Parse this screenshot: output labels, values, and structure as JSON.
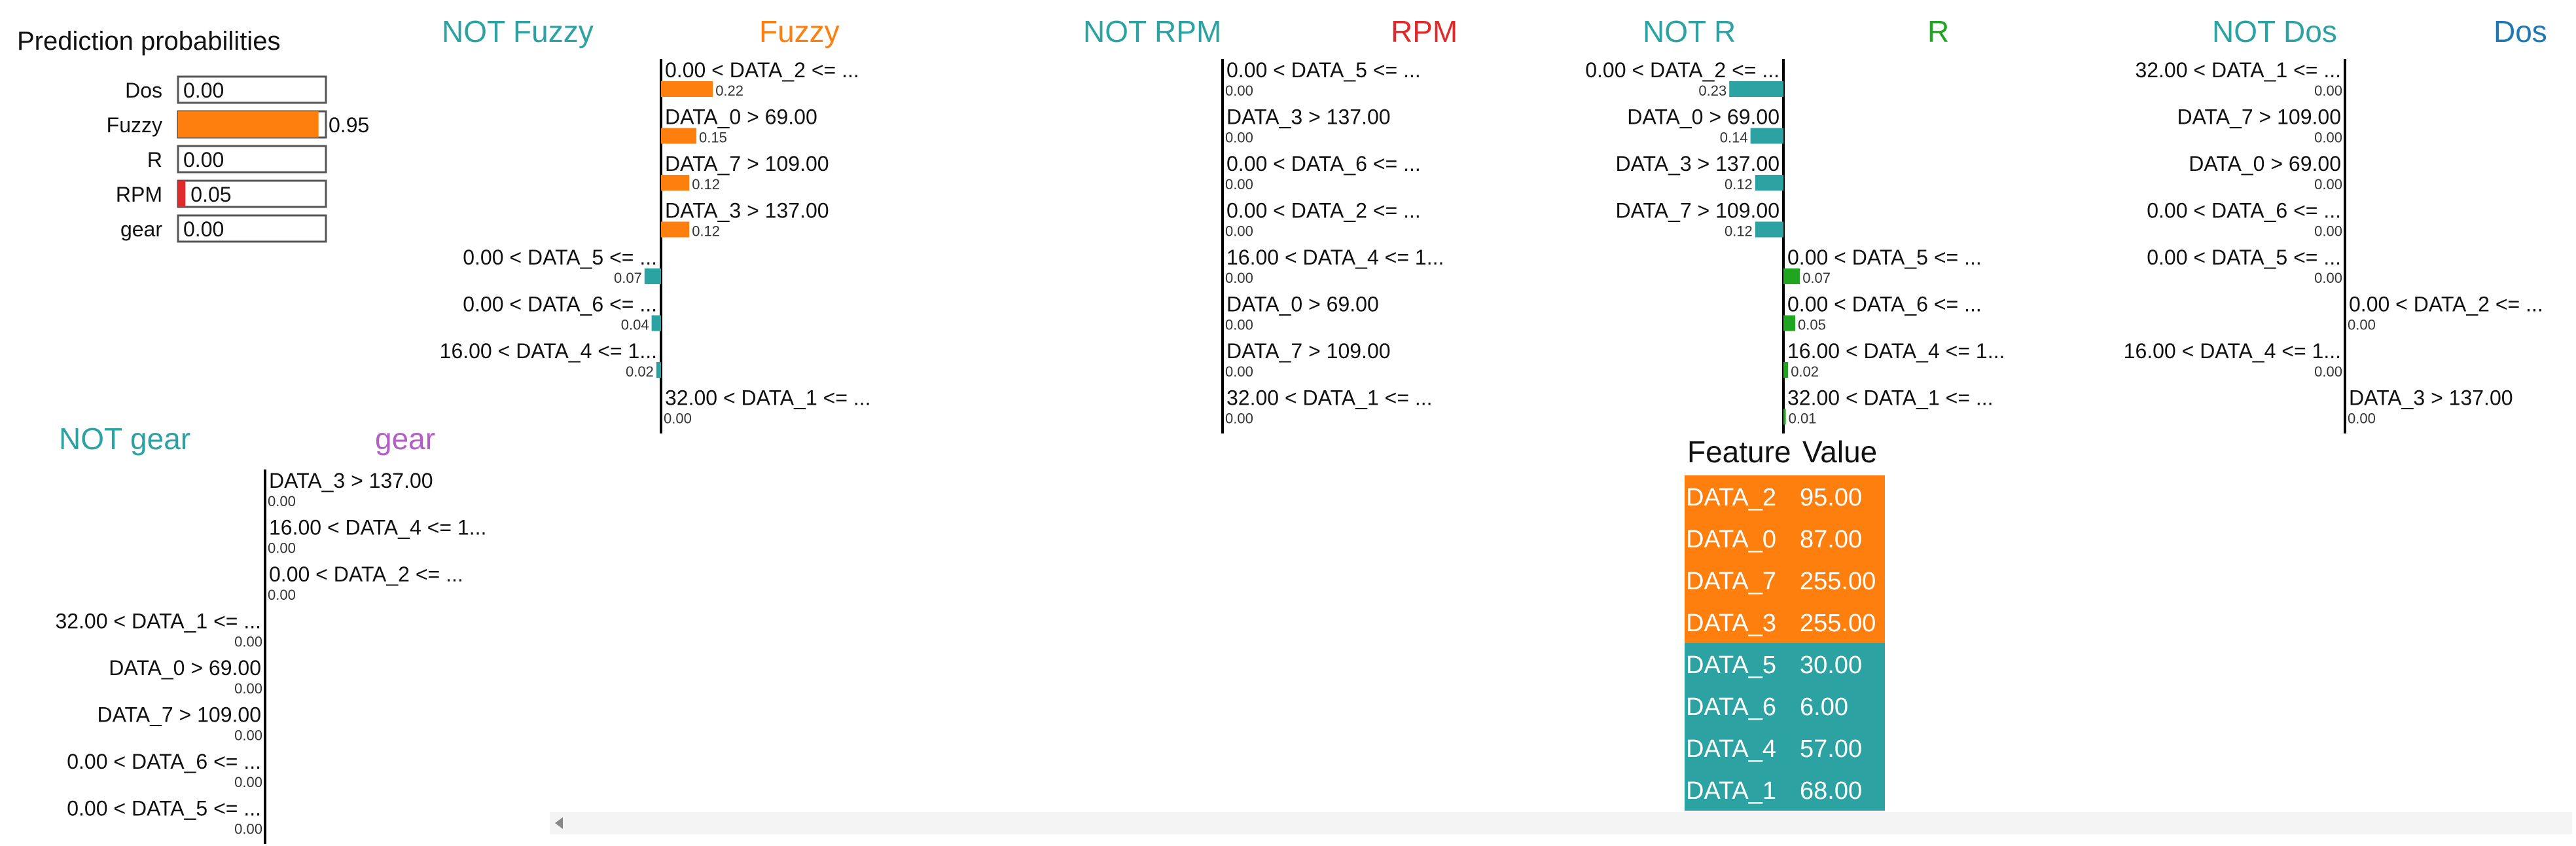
{
  "colors": {
    "fuzzy": "#ff7f0e",
    "not_class": "#2ca2a2",
    "r": "#1fa51f",
    "rpm": "#e02a2a",
    "dos": "#1f77b4",
    "gear": "#b45ec8",
    "axis": "#000000",
    "text": "#111111"
  },
  "chart_data": [
    {
      "type": "bar",
      "title": "Prediction probabilities",
      "categories": [
        "Dos",
        "Fuzzy",
        "R",
        "RPM",
        "gear"
      ],
      "values": [
        0.0,
        0.95,
        0.0,
        0.05,
        0.0
      ],
      "labels": [
        "0.00",
        "0.95",
        "0.00",
        "0.05",
        "0.00"
      ],
      "colors": [
        "#1f77b4",
        "#ff7f0e",
        "#1fa51f",
        "#e02a2a",
        "#b45ec8"
      ],
      "xlim": [
        0,
        1
      ]
    },
    {
      "type": "bar",
      "neg_label": "NOT Fuzzy",
      "pos_label": "Fuzzy",
      "pos_color": "#ff7f0e",
      "features": [
        "0.00 < DATA_2 <= ...",
        "DATA_0 > 69.00",
        "DATA_7 > 109.00",
        "DATA_3 > 137.00",
        "0.00 < DATA_5 <= ...",
        "0.00 < DATA_6 <= ...",
        "16.00 < DATA_4 <= 1...",
        "32.00 < DATA_1 <= ..."
      ],
      "values": [
        0.22,
        0.15,
        0.12,
        0.12,
        -0.07,
        -0.04,
        -0.02,
        0.0
      ],
      "value_labels": [
        "0.22",
        "0.15",
        "0.12",
        "0.12",
        "0.07",
        "0.04",
        "0.02",
        "0.00"
      ]
    },
    {
      "type": "bar",
      "neg_label": "NOT RPM",
      "pos_label": "RPM",
      "pos_color": "#e02a2a",
      "features": [
        "0.00 < DATA_5 <= ...",
        "DATA_3 > 137.00",
        "0.00 < DATA_6 <= ...",
        "0.00 < DATA_2 <= ...",
        "16.00 < DATA_4 <= 1...",
        "DATA_0 > 69.00",
        "DATA_7 > 109.00",
        "32.00 < DATA_1 <= ..."
      ],
      "values": [
        0,
        0,
        0,
        0,
        0,
        0,
        0,
        0
      ],
      "value_labels": [
        "0.00",
        "0.00",
        "0.00",
        "0.00",
        "0.00",
        "0.00",
        "0.00",
        "0.00"
      ]
    },
    {
      "type": "bar",
      "neg_label": "NOT R",
      "pos_label": "R",
      "pos_color": "#1fa51f",
      "features": [
        "0.00 < DATA_2 <= ...",
        "DATA_0 > 69.00",
        "DATA_3 > 137.00",
        "DATA_7 > 109.00",
        "0.00 < DATA_5 <= ...",
        "0.00 < DATA_6 <= ...",
        "16.00 < DATA_4 <= 1...",
        "32.00 < DATA_1 <= ..."
      ],
      "values": [
        -0.23,
        -0.14,
        -0.12,
        -0.12,
        0.07,
        0.05,
        0.02,
        0.01
      ],
      "value_labels": [
        "0.23",
        "0.14",
        "0.12",
        "0.12",
        "0.07",
        "0.05",
        "0.02",
        "0.01"
      ]
    },
    {
      "type": "bar",
      "neg_label": "NOT Dos",
      "pos_label": "Dos",
      "pos_color": "#1f77b4",
      "features": [
        "32.00 < DATA_1 <= ...",
        "DATA_7 > 109.00",
        "DATA_0 > 69.00",
        "0.00 < DATA_6 <= ...",
        "0.00 < DATA_5 <= ...",
        "0.00 < DATA_2 <= ...",
        "16.00 < DATA_4 <= 1...",
        "DATA_3 > 137.00"
      ],
      "values": [
        -0.0,
        -0.0,
        -0.0,
        -0.0,
        -0.0,
        0.0,
        -0.0,
        0.0
      ],
      "value_labels": [
        "0.00",
        "0.00",
        "0.00",
        "0.00",
        "0.00",
        "0.00",
        "0.00",
        "0.00"
      ]
    },
    {
      "type": "bar",
      "neg_label": "NOT gear",
      "pos_label": "gear",
      "pos_color": "#b45ec8",
      "features": [
        "DATA_3 > 137.00",
        "16.00 < DATA_4 <= 1...",
        "0.00 < DATA_2 <= ...",
        "32.00 < DATA_1 <= ...",
        "DATA_0 > 69.00",
        "DATA_7 > 109.00",
        "0.00 < DATA_6 <= ...",
        "0.00 < DATA_5 <= ..."
      ],
      "values": [
        0.0,
        0.0,
        0.0,
        -0.0,
        -0.0,
        -0.0,
        -0.0,
        -0.0
      ],
      "value_labels": [
        "0.00",
        "0.00",
        "0.00",
        "0.00",
        "0.00",
        "0.00",
        "0.00",
        "0.00"
      ]
    },
    {
      "type": "table",
      "columns": [
        "Feature",
        "Value"
      ],
      "rows": [
        {
          "feature": "DATA_2",
          "value": "95.00",
          "color": "#ff7f0e"
        },
        {
          "feature": "DATA_0",
          "value": "87.00",
          "color": "#ff7f0e"
        },
        {
          "feature": "DATA_7",
          "value": "255.00",
          "color": "#ff7f0e"
        },
        {
          "feature": "DATA_3",
          "value": "255.00",
          "color": "#ff7f0e"
        },
        {
          "feature": "DATA_5",
          "value": "30.00",
          "color": "#2ca2a2"
        },
        {
          "feature": "DATA_6",
          "value": "6.00",
          "color": "#2ca2a2"
        },
        {
          "feature": "DATA_4",
          "value": "57.00",
          "color": "#2ca2a2"
        },
        {
          "feature": "DATA_1",
          "value": "68.00",
          "color": "#2ca2a2"
        }
      ]
    }
  ]
}
